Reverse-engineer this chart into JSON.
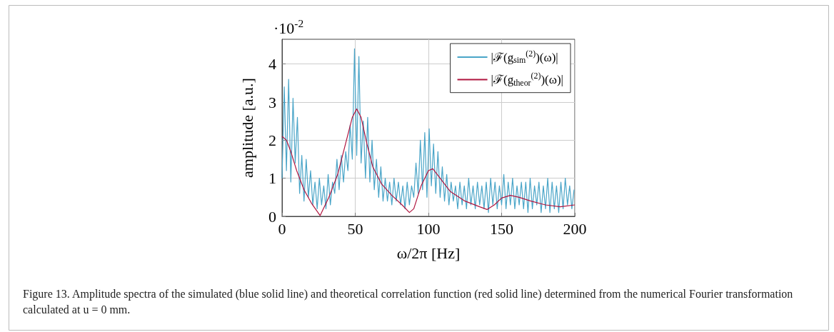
{
  "chart_data": {
    "type": "line",
    "xlabel": "ω/2π [Hz]",
    "ylabel": "amplitude [a.u.]",
    "annotations": [
      "·10$^{-2}$",
      "Figure 13. Amplitude spectra of the simulated (blue solid line) and theoretical correlation function (red solid line) determined from the numerical Fourier transformation calculated at u = 0 mm."
    ],
    "xlim": [
      0,
      200
    ],
    "xticks": [
      0,
      50,
      100,
      150,
      200
    ],
    "ylim": [
      0,
      4.65
    ],
    "yticks": [
      0,
      1,
      2,
      3,
      4
    ],
    "grid": true,
    "legend": "top right",
    "line_style": "solid",
    "marker": "none",
    "series": [
      {
        "name": "|ℱ(g$_{sim}$$^{(2)}$)(ω)|",
        "color": "#4aa5c8",
        "x": [
          0,
          1.5,
          3,
          4.5,
          6,
          7.5,
          9,
          10.5,
          12,
          13.5,
          15,
          16.5,
          18,
          19.5,
          21,
          22.5,
          24,
          25.5,
          27,
          28.5,
          30,
          31.5,
          33,
          34.5,
          36,
          37.5,
          39,
          40.5,
          42,
          43.5,
          45,
          46.5,
          48,
          49.5,
          51,
          52.5,
          54,
          55.5,
          57,
          58.5,
          60,
          61.5,
          63,
          64.5,
          66,
          67.5,
          69,
          70.5,
          72,
          73.5,
          75,
          76.5,
          78,
          79.5,
          81,
          82.5,
          84,
          85.5,
          87,
          88.5,
          90,
          91.5,
          93,
          94.5,
          96,
          97.5,
          99,
          100.5,
          102,
          103.5,
          105,
          106.5,
          108,
          109.5,
          111,
          112.5,
          114,
          115.5,
          117,
          118.5,
          120,
          121.5,
          123,
          124.5,
          126,
          127.5,
          129,
          130.5,
          132,
          133.5,
          135,
          136.5,
          138,
          139.5,
          141,
          142.5,
          144,
          145.5,
          147,
          148.5,
          150,
          151.5,
          153,
          154.5,
          156,
          157.5,
          159,
          160.5,
          162,
          163.5,
          165,
          166.5,
          168,
          169.5,
          171,
          172.5,
          174,
          175.5,
          177,
          178.5,
          180,
          181.5,
          183,
          184.5,
          186,
          187.5,
          189,
          190.5,
          192,
          193.5,
          195,
          196.5,
          198,
          199.5
        ],
        "values": [
          1.0,
          3.4,
          1.2,
          3.6,
          0.9,
          3.1,
          1.4,
          2.6,
          0.6,
          1.6,
          0.4,
          1.5,
          0.5,
          1.2,
          0.3,
          0.9,
          0.2,
          1.0,
          0.3,
          0.8,
          0.2,
          1.1,
          0.3,
          0.9,
          0.6,
          1.5,
          0.7,
          1.6,
          0.9,
          1.7,
          1.2,
          2.4,
          1.5,
          4.4,
          1.6,
          4.2,
          1.4,
          2.5,
          1.0,
          2.6,
          0.9,
          2.0,
          0.7,
          1.5,
          0.5,
          1.3,
          0.4,
          1.0,
          0.4,
          0.9,
          0.3,
          1.0,
          0.4,
          0.9,
          0.3,
          0.8,
          0.2,
          0.9,
          0.3,
          0.8,
          0.5,
          1.4,
          0.6,
          2.0,
          0.7,
          2.2,
          0.5,
          2.3,
          0.8,
          1.9,
          0.6,
          1.7,
          0.5,
          1.3,
          0.4,
          1.1,
          0.3,
          0.9,
          0.4,
          0.8,
          0.2,
          0.9,
          0.3,
          0.8,
          0.2,
          1.0,
          0.3,
          0.8,
          0.2,
          0.9,
          0.3,
          0.8,
          0.2,
          0.9,
          0.1,
          1.0,
          0.3,
          0.9,
          0.2,
          0.8,
          0.3,
          1.1,
          0.2,
          0.9,
          0.3,
          1.0,
          0.2,
          0.8,
          0.3,
          0.9,
          0.2,
          0.9,
          0.1,
          1.0,
          0.2,
          0.8,
          0.3,
          0.9,
          0.1,
          0.8,
          0.2,
          1.0,
          0.1,
          0.9,
          0.2,
          0.8,
          0.1,
          0.9,
          0.2,
          1.0,
          0.3,
          0.8,
          0.2,
          0.7
        ]
      },
      {
        "name": "|ℱ(g$_{theor}$$^{(2)}$)(ω)|",
        "color": "#b0153f",
        "x": [
          0,
          3,
          6,
          10,
          15,
          20,
          26,
          32,
          38,
          44,
          48,
          51,
          54,
          58,
          62,
          68,
          75,
          82,
          87,
          90,
          95,
          100,
          103,
          108,
          115,
          125,
          135,
          140,
          145,
          150,
          156,
          162,
          170,
          180,
          190,
          200
        ],
        "values": [
          2.1,
          2.0,
          1.7,
          1.2,
          0.7,
          0.35,
          0.02,
          0.5,
          1.1,
          2.0,
          2.6,
          2.82,
          2.6,
          1.9,
          1.3,
          0.85,
          0.55,
          0.3,
          0.1,
          0.2,
          0.8,
          1.2,
          1.25,
          1.0,
          0.65,
          0.4,
          0.25,
          0.18,
          0.3,
          0.48,
          0.55,
          0.5,
          0.4,
          0.3,
          0.25,
          0.3
        ]
      }
    ]
  }
}
